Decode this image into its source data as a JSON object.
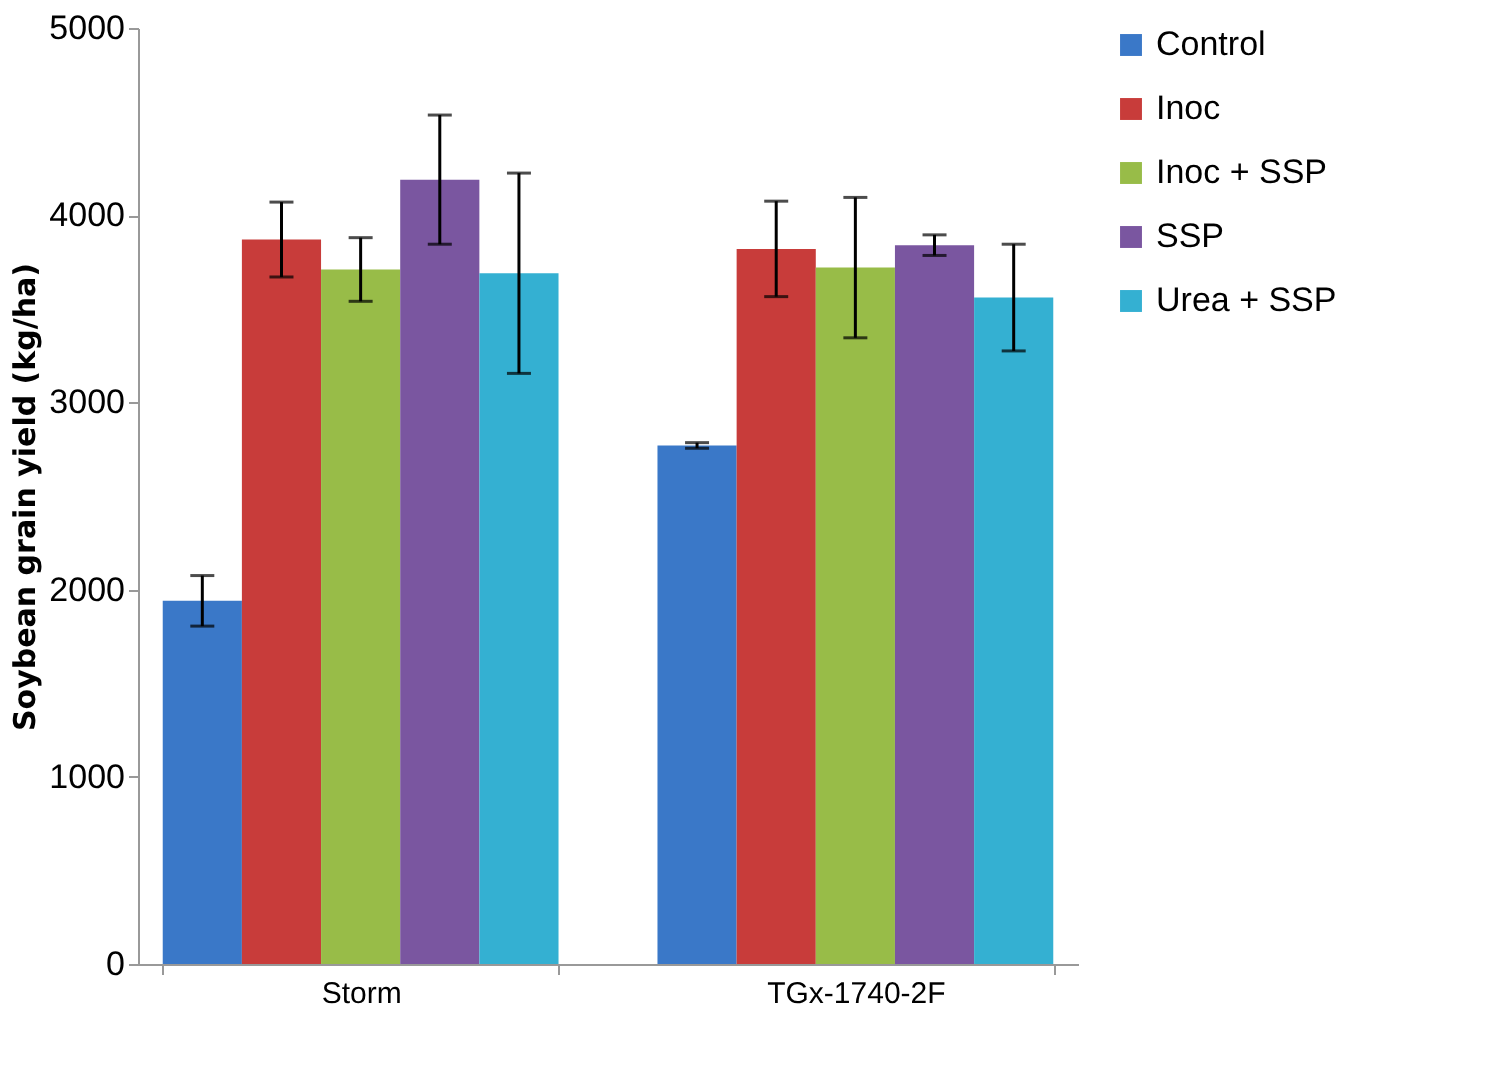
{
  "chart_data": {
    "type": "bar",
    "ylabel": "Soybean grain yield (kg/ha)",
    "categories": [
      "Storm",
      "TGx-1740-2F"
    ],
    "series": [
      {
        "name": "Control",
        "color": "#3a78c8",
        "values": [
          1940,
          2770
        ],
        "errors": [
          135,
          15
        ]
      },
      {
        "name": "Inoc",
        "color": "#c83c3a",
        "values": [
          3870,
          3820
        ],
        "errors": [
          200,
          255
        ]
      },
      {
        "name": "Inoc + SSP",
        "color": "#98bc48",
        "values": [
          3710,
          3720
        ],
        "errors": [
          170,
          375
        ]
      },
      {
        "name": "SSP",
        "color": "#7a56a0",
        "values": [
          4190,
          3840
        ],
        "errors": [
          345,
          55
        ]
      },
      {
        "name": "Urea + SSP",
        "color": "#34b0d2",
        "values": [
          3690,
          3560
        ],
        "errors": [
          535,
          285
        ]
      }
    ],
    "ylim": [
      0,
      5000
    ],
    "yticks": [
      0,
      1000,
      2000,
      3000,
      4000,
      5000
    ],
    "grid": false,
    "legend": "right"
  }
}
